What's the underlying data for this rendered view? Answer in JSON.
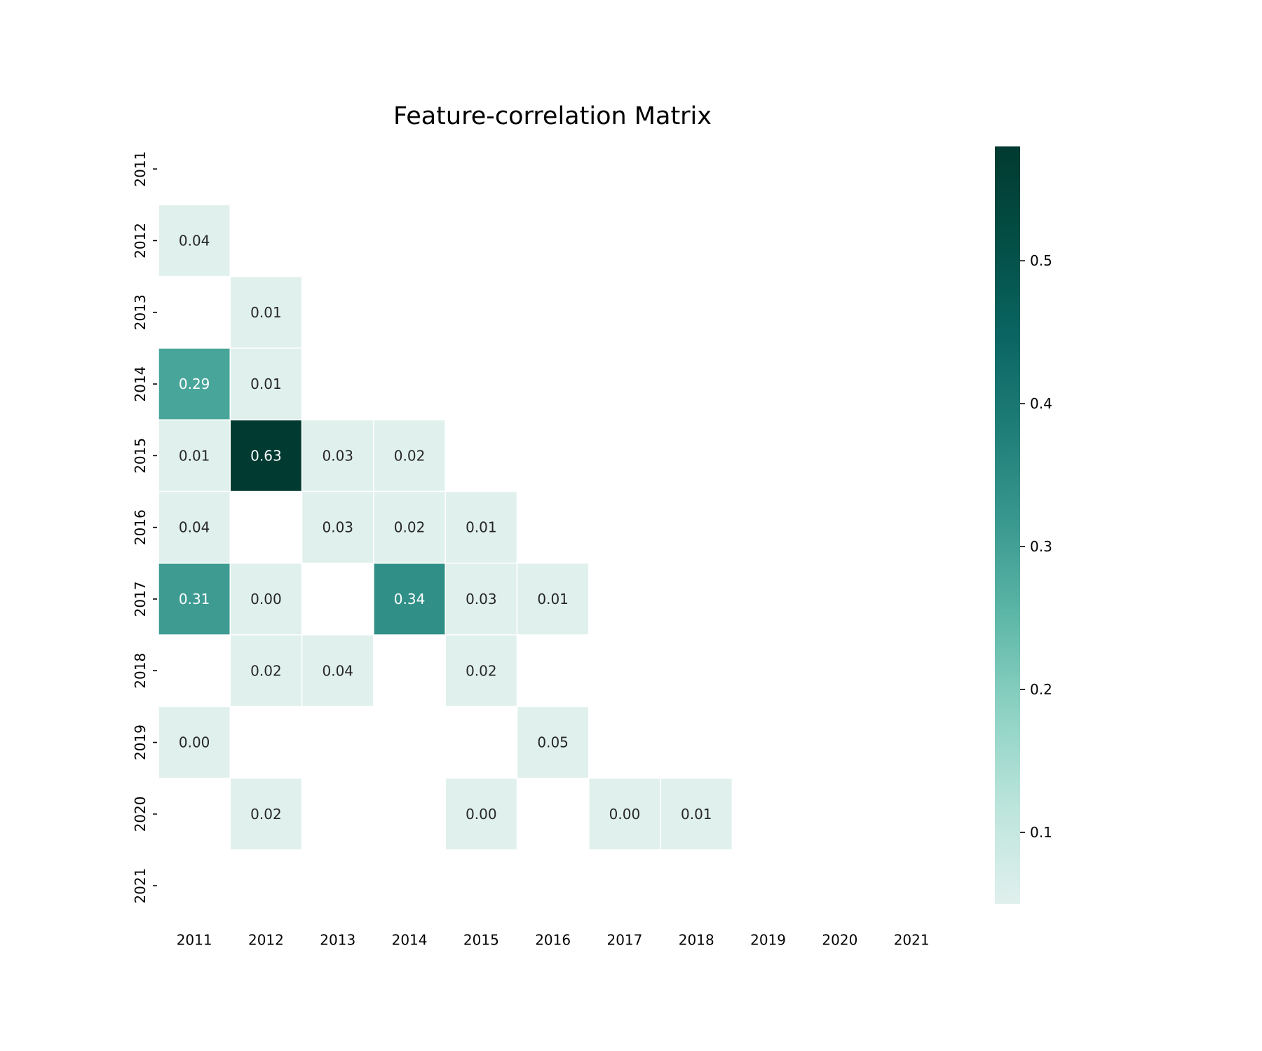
{
  "chart_data": {
    "type": "heatmap",
    "title": "Feature-correlation Matrix",
    "xlabel": "",
    "ylabel": "",
    "x_categories": [
      "2011",
      "2012",
      "2013",
      "2014",
      "2015",
      "2016",
      "2017",
      "2018",
      "2019",
      "2020",
      "2021"
    ],
    "y_categories": [
      "2011",
      "2012",
      "2013",
      "2014",
      "2015",
      "2016",
      "2017",
      "2018",
      "2019",
      "2020",
      "2021"
    ],
    "cells": [
      {
        "row": "2012",
        "col": "2011",
        "value": 0.04,
        "label": "0.04"
      },
      {
        "row": "2013",
        "col": "2012",
        "value": 0.01,
        "label": "0.01"
      },
      {
        "row": "2014",
        "col": "2011",
        "value": 0.29,
        "label": "0.29"
      },
      {
        "row": "2014",
        "col": "2012",
        "value": 0.01,
        "label": "0.01"
      },
      {
        "row": "2015",
        "col": "2011",
        "value": 0.01,
        "label": "0.01"
      },
      {
        "row": "2015",
        "col": "2012",
        "value": 0.63,
        "label": "0.63"
      },
      {
        "row": "2015",
        "col": "2013",
        "value": 0.03,
        "label": "0.03"
      },
      {
        "row": "2015",
        "col": "2014",
        "value": 0.02,
        "label": "0.02"
      },
      {
        "row": "2016",
        "col": "2011",
        "value": 0.04,
        "label": "0.04"
      },
      {
        "row": "2016",
        "col": "2013",
        "value": 0.03,
        "label": "0.03"
      },
      {
        "row": "2016",
        "col": "2014",
        "value": 0.02,
        "label": "0.02"
      },
      {
        "row": "2016",
        "col": "2015",
        "value": 0.01,
        "label": "0.01"
      },
      {
        "row": "2017",
        "col": "2011",
        "value": 0.31,
        "label": "0.31"
      },
      {
        "row": "2017",
        "col": "2012",
        "value": 0.0,
        "label": "0.00"
      },
      {
        "row": "2017",
        "col": "2014",
        "value": 0.34,
        "label": "0.34"
      },
      {
        "row": "2017",
        "col": "2015",
        "value": 0.03,
        "label": "0.03"
      },
      {
        "row": "2017",
        "col": "2016",
        "value": 0.01,
        "label": "0.01"
      },
      {
        "row": "2018",
        "col": "2012",
        "value": 0.02,
        "label": "0.02"
      },
      {
        "row": "2018",
        "col": "2013",
        "value": 0.04,
        "label": "0.04"
      },
      {
        "row": "2018",
        "col": "2015",
        "value": 0.02,
        "label": "0.02"
      },
      {
        "row": "2019",
        "col": "2011",
        "value": 0.0,
        "label": "0.00"
      },
      {
        "row": "2019",
        "col": "2016",
        "value": 0.05,
        "label": "0.05"
      },
      {
        "row": "2020",
        "col": "2012",
        "value": 0.02,
        "label": "0.02"
      },
      {
        "row": "2020",
        "col": "2015",
        "value": 0.0,
        "label": "0.00"
      },
      {
        "row": "2020",
        "col": "2017",
        "value": 0.0,
        "label": "0.00"
      },
      {
        "row": "2020",
        "col": "2018",
        "value": 0.01,
        "label": "0.01"
      }
    ],
    "colorbar": {
      "range": [
        0.05,
        0.58
      ],
      "ticks": [
        0.1,
        0.2,
        0.3,
        0.4,
        0.5
      ],
      "tick_labels": [
        "0.1",
        "0.2",
        "0.3",
        "0.4",
        "0.5"
      ],
      "colors": [
        "#e0f0ed",
        "#bde5dc",
        "#8fd3c5",
        "#5fb8a8",
        "#3a9990",
        "#1f7e78",
        "#0a6562",
        "#034e45",
        "#013a30"
      ]
    },
    "grid": false,
    "legend": "colorbar-right"
  }
}
